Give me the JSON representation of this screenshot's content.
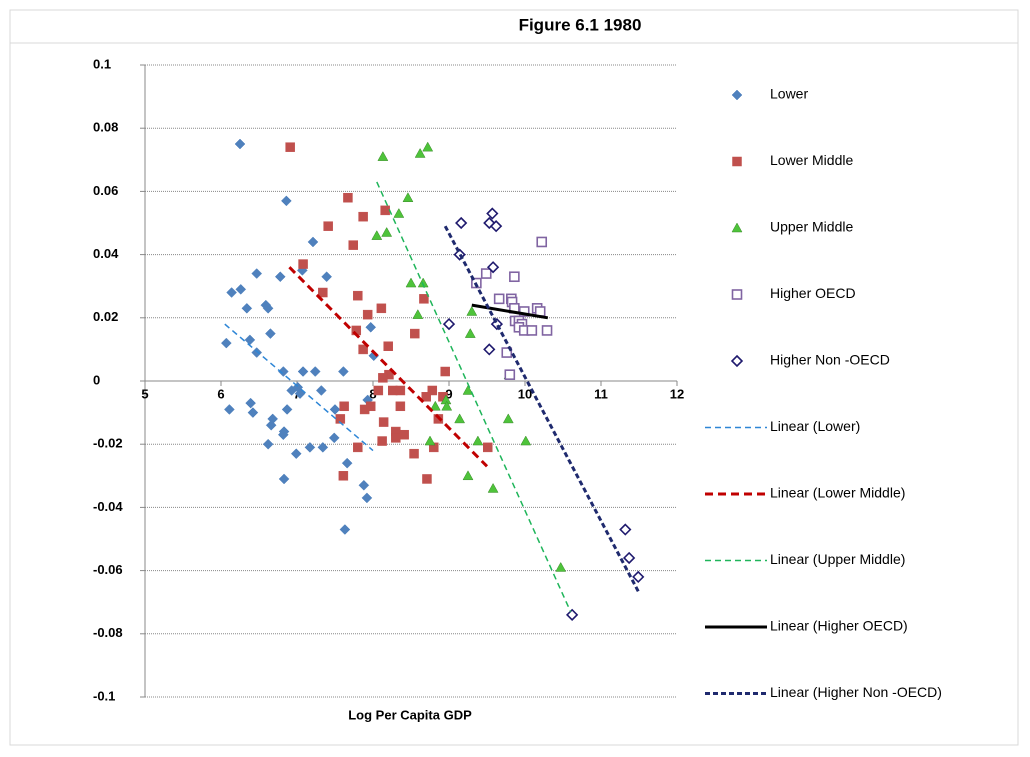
{
  "chart_data": {
    "type": "scatter",
    "title": "Figure 6.1 1980",
    "x_label": "Log Per Capita GDP",
    "xlim": [
      5,
      12
    ],
    "ylim": [
      -0.1,
      0.1
    ],
    "xticks": [
      5,
      6,
      7,
      8,
      9,
      10,
      11,
      12
    ],
    "yticks": [
      0.1,
      0.08,
      0.06,
      0.04,
      0.02,
      0,
      -0.02,
      -0.04,
      -0.06,
      -0.08,
      -0.1
    ],
    "grid": true,
    "legend": "right",
    "series": [
      {
        "name": "Lower",
        "color": "#4f81bd",
        "marker": "diamond",
        "x": [
          6.25,
          6.86,
          7.21,
          7.07,
          7.39,
          6.47,
          6.14,
          6.26,
          6.34,
          6.78,
          6.59,
          6.62,
          6.07,
          6.38,
          6.47,
          6.65,
          6.82,
          7.08,
          7.24,
          7.61,
          6.11,
          6.39,
          6.42,
          6.93,
          7.01,
          7.04,
          7.32,
          6.87,
          6.68,
          6.66,
          6.62,
          6.83,
          6.82,
          6.99,
          7.17,
          7.34,
          7.49,
          7.5,
          6.83,
          7.66,
          7.88,
          7.92,
          7.63,
          7.93,
          7.97,
          8.01
        ],
        "y": [
          0.075,
          0.057,
          0.044,
          0.035,
          0.033,
          0.034,
          0.028,
          0.029,
          0.023,
          0.033,
          0.024,
          0.023,
          0.012,
          0.013,
          0.009,
          0.015,
          0.003,
          0.003,
          0.003,
          0.003,
          -0.009,
          -0.007,
          -0.01,
          -0.003,
          -0.002,
          -0.004,
          -0.003,
          -0.009,
          -0.012,
          -0.014,
          -0.02,
          -0.016,
          -0.017,
          -0.023,
          -0.021,
          -0.021,
          -0.018,
          -0.009,
          -0.031,
          -0.026,
          -0.033,
          -0.037,
          -0.047,
          -0.006,
          0.017,
          0.008
        ]
      },
      {
        "name": "Lower Middle",
        "color": "#c0504d",
        "marker": "square",
        "x": [
          6.91,
          7.08,
          7.34,
          7.41,
          7.67,
          7.74,
          7.87,
          8.16,
          7.8,
          7.78,
          7.87,
          7.93,
          8.11,
          8.2,
          8.21,
          8.13,
          8.07,
          8.26,
          8.36,
          8.36,
          8.55,
          8.67,
          8.78,
          8.7,
          8.95,
          8.92,
          8.86,
          8.8,
          8.71,
          8.54,
          8.41,
          8.3,
          8.3,
          8.12,
          8.14,
          7.89,
          7.8,
          7.62,
          7.57,
          7.61,
          7.97,
          9.51
        ],
        "y": [
          0.074,
          0.037,
          0.028,
          0.049,
          0.058,
          0.043,
          0.052,
          0.054,
          0.027,
          0.016,
          0.01,
          0.021,
          0.023,
          0.011,
          0.002,
          0.001,
          -0.003,
          -0.003,
          -0.003,
          -0.008,
          0.015,
          0.026,
          -0.003,
          -0.005,
          0.003,
          -0.005,
          -0.012,
          -0.021,
          -0.031,
          -0.023,
          -0.017,
          -0.016,
          -0.018,
          -0.019,
          -0.013,
          -0.009,
          -0.021,
          -0.008,
          -0.012,
          -0.03,
          -0.008,
          -0.021
        ]
      },
      {
        "name": "Upper Middle",
        "color": "#4ec33a",
        "marker": "triangle",
        "x": [
          8.13,
          8.62,
          8.72,
          8.34,
          8.46,
          8.05,
          8.18,
          8.5,
          8.66,
          8.59,
          9.3,
          9.28,
          9.25,
          8.96,
          8.97,
          9.14,
          8.82,
          8.75,
          9.38,
          9.25,
          9.58,
          9.78,
          10.01,
          9.79,
          10.47
        ],
        "y": [
          0.071,
          0.072,
          0.074,
          0.053,
          0.058,
          0.046,
          0.047,
          0.031,
          0.031,
          0.021,
          0.022,
          0.015,
          -0.003,
          -0.006,
          -0.008,
          -0.012,
          -0.008,
          -0.019,
          -0.019,
          -0.03,
          -0.034,
          -0.012,
          -0.019,
          0.002,
          -0.059
        ]
      },
      {
        "name": "Higher OECD",
        "color": "#8064a2",
        "marker": "open-square",
        "x": [
          10.22,
          9.36,
          9.49,
          9.86,
          9.66,
          9.82,
          9.83,
          9.86,
          9.99,
          10.16,
          10.2,
          9.87,
          9.92,
          9.96,
          9.92,
          9.99,
          10.09,
          10.29,
          9.76,
          9.8
        ],
        "y": [
          0.044,
          0.031,
          0.034,
          0.033,
          0.026,
          0.026,
          0.025,
          0.023,
          0.022,
          0.023,
          0.022,
          0.019,
          0.019,
          0.018,
          0.017,
          0.016,
          0.016,
          0.016,
          0.009,
          0.002
        ]
      },
      {
        "name": "Higher Non -OECD",
        "color": "#1f1a6e",
        "marker": "open-diamond",
        "x": [
          9.53,
          9.57,
          9.62,
          9.16,
          9.14,
          9.58,
          9.0,
          9.63,
          9.53,
          11.32,
          11.37,
          11.49,
          10.62
        ],
        "y": [
          0.05,
          0.053,
          0.049,
          0.05,
          0.04,
          0.036,
          0.018,
          0.018,
          0.01,
          -0.047,
          -0.056,
          -0.062,
          -0.074
        ]
      }
    ],
    "trendlines": [
      {
        "name": "Linear (Lower)",
        "color": "#2e86d6",
        "width": 1.5,
        "dash": "6 4",
        "x": [
          6.05,
          8.0
        ],
        "y": [
          0.018,
          -0.022
        ]
      },
      {
        "name": "Linear (Lower Middle)",
        "color": "#c00000",
        "width": 3,
        "dash": "8 5",
        "x": [
          6.9,
          9.5
        ],
        "y": [
          0.036,
          -0.027
        ]
      },
      {
        "name": "Linear (Upper Middle)",
        "color": "#1fb55a",
        "width": 1.5,
        "dash": "6 4",
        "x": [
          8.05,
          10.6
        ],
        "y": [
          0.063,
          -0.073
        ]
      },
      {
        "name": "Linear (Higher OECD)",
        "color": "#000000",
        "width": 3,
        "dash": "none",
        "x": [
          9.3,
          10.3
        ],
        "y": [
          0.024,
          0.02
        ]
      },
      {
        "name": "Linear (Higher Non -OECD)",
        "color": "#1f2a6e",
        "width": 3,
        "dash": "5 3",
        "x": [
          8.95,
          11.5
        ],
        "y": [
          0.049,
          -0.067
        ]
      }
    ]
  }
}
